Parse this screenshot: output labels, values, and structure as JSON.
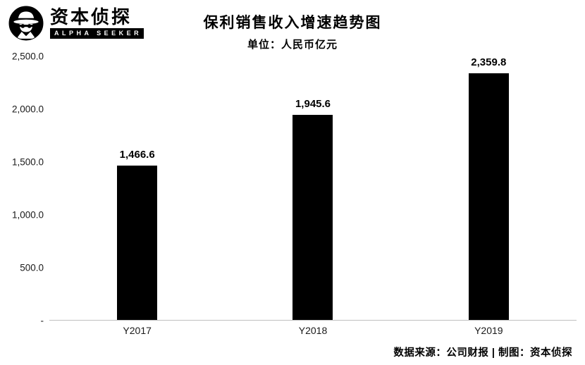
{
  "logo": {
    "brand_cn": "资本侦探",
    "brand_en": "ALPHA SEEKER",
    "icon": "detective-icon"
  },
  "chart_data": {
    "type": "bar",
    "title": "保利销售收入增速趋势图",
    "subtitle": "单位：人民币亿元",
    "categories": [
      "Y2017",
      "Y2018",
      "Y2019"
    ],
    "values": [
      1466.6,
      1945.6,
      2359.8
    ],
    "value_labels": [
      "1,466.6",
      "1,945.6",
      "2,359.8"
    ],
    "y_ticks": [
      "2,500.0",
      "2,000.0",
      "1,500.0",
      "1,000.0",
      "500.0",
      "-"
    ],
    "ylim": [
      0,
      2500
    ],
    "bar_color": "#000000",
    "axis_line_color": "#bfbfbf",
    "grid": false,
    "legend": false
  },
  "footer": {
    "source_text": "数据来源：公司财报 | 制图：资本侦探"
  }
}
